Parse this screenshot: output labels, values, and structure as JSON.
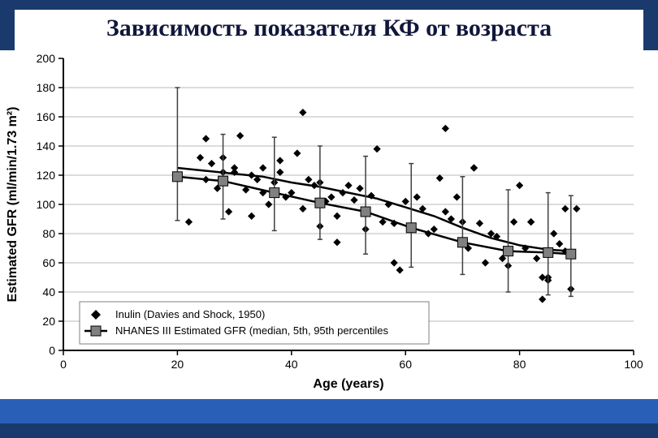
{
  "title": "Зависимость показателя КФ от возраста",
  "chart": {
    "type": "scatter-with-line-errorbars",
    "background_color": "#ffffff",
    "plot_background": "#ffffff",
    "grid_color": "#b8b8b8",
    "axis_color": "#000000",
    "xlabel": "Age (years)",
    "ylabel": "Estimated GFR (ml/min/1.73 m²)",
    "label_fontsize": 16,
    "label_fontweight": "bold",
    "tick_fontsize": 14,
    "xlim": [
      0,
      100
    ],
    "ylim": [
      0,
      200
    ],
    "xtick_step": 20,
    "ytick_step": 20,
    "legend": {
      "border_color": "#808080",
      "background": "#ffffff",
      "fontsize": 13,
      "items": [
        {
          "marker": "diamond",
          "marker_color": "#000000",
          "label": "Inulin (Davies and Shock, 1950)"
        },
        {
          "marker": "square-line",
          "marker_color": "#808080",
          "line_color": "#000000",
          "label": "NHANES III Estimated GFR (median, 5th, 95th percentiles"
        }
      ]
    },
    "scatter": {
      "marker": "diamond",
      "marker_color": "#000000",
      "marker_size": 6,
      "points": [
        [
          20,
          120
        ],
        [
          22,
          88
        ],
        [
          24,
          132
        ],
        [
          25,
          117
        ],
        [
          25,
          145
        ],
        [
          26,
          128
        ],
        [
          27,
          111
        ],
        [
          28,
          132
        ],
        [
          28,
          122
        ],
        [
          29,
          95
        ],
        [
          30,
          122
        ],
        [
          30,
          125
        ],
        [
          31,
          147
        ],
        [
          32,
          110
        ],
        [
          33,
          120
        ],
        [
          33,
          92
        ],
        [
          34,
          117
        ],
        [
          35,
          108
        ],
        [
          35,
          125
        ],
        [
          36,
          100
        ],
        [
          37,
          115
        ],
        [
          38,
          130
        ],
        [
          38,
          122
        ],
        [
          39,
          105
        ],
        [
          40,
          108
        ],
        [
          41,
          135
        ],
        [
          42,
          163
        ],
        [
          42,
          97
        ],
        [
          43,
          117
        ],
        [
          44,
          113
        ],
        [
          45,
          115
        ],
        [
          45,
          85
        ],
        [
          46,
          102
        ],
        [
          47,
          105
        ],
        [
          48,
          92
        ],
        [
          48,
          74
        ],
        [
          49,
          108
        ],
        [
          50,
          113
        ],
        [
          51,
          103
        ],
        [
          52,
          111
        ],
        [
          53,
          83
        ],
        [
          54,
          106
        ],
        [
          55,
          138
        ],
        [
          56,
          88
        ],
        [
          57,
          100
        ],
        [
          58,
          87
        ],
        [
          58,
          60
        ],
        [
          59,
          55
        ],
        [
          60,
          102
        ],
        [
          61,
          83
        ],
        [
          62,
          105
        ],
        [
          63,
          97
        ],
        [
          64,
          80
        ],
        [
          65,
          83
        ],
        [
          66,
          118
        ],
        [
          67,
          152
        ],
        [
          67,
          95
        ],
        [
          68,
          90
        ],
        [
          69,
          105
        ],
        [
          70,
          88
        ],
        [
          71,
          70
        ],
        [
          72,
          125
        ],
        [
          72,
          125
        ],
        [
          73,
          87
        ],
        [
          74,
          60
        ],
        [
          75,
          80
        ],
        [
          76,
          78
        ],
        [
          77,
          63
        ],
        [
          78,
          58
        ],
        [
          79,
          88
        ],
        [
          80,
          113
        ],
        [
          81,
          70
        ],
        [
          82,
          88
        ],
        [
          82,
          88
        ],
        [
          83,
          63
        ],
        [
          84,
          35
        ],
        [
          84,
          50
        ],
        [
          85,
          50
        ],
        [
          85,
          48
        ],
        [
          86,
          80
        ],
        [
          87,
          73
        ],
        [
          88,
          68
        ],
        [
          88,
          97
        ],
        [
          89,
          42
        ],
        [
          90,
          97
        ]
      ]
    },
    "errorbar_series": {
      "marker": "square",
      "marker_color": "#808080",
      "marker_border": "#000000",
      "marker_size": 12,
      "line_color": "#000000",
      "line_width": 2.5,
      "errorbar_color": "#404040",
      "errorbar_width": 1.5,
      "cap_width": 6,
      "points": [
        {
          "x": 20,
          "y": 119,
          "low": 89,
          "high": 180
        },
        {
          "x": 28,
          "y": 116,
          "low": 90,
          "high": 148
        },
        {
          "x": 37,
          "y": 108,
          "low": 82,
          "high": 146
        },
        {
          "x": 45,
          "y": 101,
          "low": 76,
          "high": 140
        },
        {
          "x": 53,
          "y": 95,
          "low": 66,
          "high": 133
        },
        {
          "x": 61,
          "y": 84,
          "low": 57,
          "high": 128
        },
        {
          "x": 70,
          "y": 74,
          "low": 52,
          "high": 119
        },
        {
          "x": 78,
          "y": 68,
          "low": 40,
          "high": 110
        },
        {
          "x": 85,
          "y": 67,
          "low": 38,
          "high": 108
        },
        {
          "x": 89,
          "y": 66,
          "low": 37,
          "high": 106
        }
      ]
    },
    "fit_curve": {
      "color": "#000000",
      "width": 2.5,
      "points": [
        [
          20,
          125
        ],
        [
          25,
          123
        ],
        [
          30,
          121
        ],
        [
          35,
          119
        ],
        [
          40,
          115
        ],
        [
          45,
          112
        ],
        [
          50,
          108
        ],
        [
          55,
          104
        ],
        [
          60,
          98
        ],
        [
          65,
          92
        ],
        [
          70,
          84
        ],
        [
          75,
          77
        ],
        [
          80,
          72
        ],
        [
          85,
          69
        ],
        [
          89,
          68
        ]
      ]
    }
  }
}
